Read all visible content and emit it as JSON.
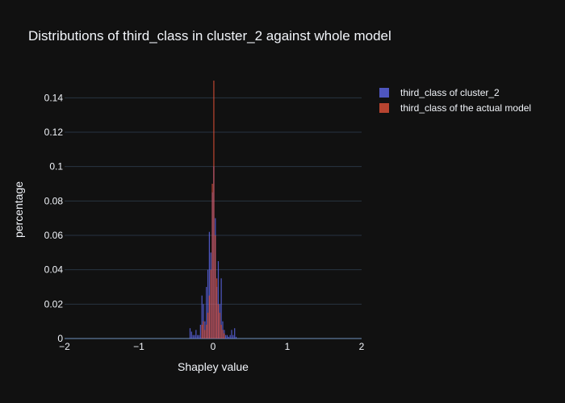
{
  "chart_data": {
    "type": "bar",
    "barmode": "overlay",
    "title": "Distributions of third_class in cluster_2 against whole model",
    "xlabel": "Shapley value",
    "ylabel": "percentage",
    "xlim": [
      -2,
      2
    ],
    "ylim": [
      0,
      0.15
    ],
    "x_ticks": [
      -2,
      -1,
      0,
      1,
      2
    ],
    "x_tick_labels": [
      "−2",
      "−1",
      "0",
      "1",
      "2"
    ],
    "y_ticks": [
      0,
      0.02,
      0.04,
      0.06,
      0.08,
      0.1,
      0.12,
      0.14
    ],
    "y_tick_labels": [
      "0",
      "0.02",
      "0.04",
      "0.06",
      "0.08",
      "0.1",
      "0.12",
      "0.14"
    ],
    "grid": true,
    "legend_position": "top-right",
    "bin_width": 0.02,
    "series": [
      {
        "name": "third_class of cluster_2",
        "color": "#636efa",
        "x": [
          -0.31,
          -0.29,
          -0.27,
          -0.25,
          -0.23,
          -0.21,
          -0.19,
          -0.17,
          -0.15,
          -0.13,
          -0.11,
          -0.09,
          -0.07,
          -0.05,
          -0.03,
          -0.01,
          0.01,
          0.03,
          0.05,
          0.07,
          0.09,
          0.11,
          0.13,
          0.15,
          0.17,
          0.19,
          0.21,
          0.23,
          0.25,
          0.27,
          0.29,
          0.31
        ],
        "values": [
          0.006,
          0.004,
          0.002,
          0.002,
          0.005,
          0.002,
          0.002,
          0.008,
          0.025,
          0.02,
          0.01,
          0.03,
          0.04,
          0.062,
          0.05,
          0.085,
          0.1,
          0.07,
          0.03,
          0.045,
          0.02,
          0.035,
          0.01,
          0.005,
          0.002,
          0.002,
          0.001,
          0.002,
          0.005,
          0.002,
          0.006,
          0.001
        ]
      },
      {
        "name": "third_class of the actual model",
        "color": "#ef553b",
        "x": [
          -0.15,
          -0.13,
          -0.11,
          -0.09,
          -0.07,
          -0.05,
          -0.03,
          -0.01,
          0.01,
          0.03,
          0.05,
          0.07,
          0.09,
          0.11,
          0.13,
          0.15
        ],
        "values": [
          0.008,
          0.01,
          0.005,
          0.008,
          0.015,
          0.025,
          0.04,
          0.09,
          0.15,
          0.06,
          0.035,
          0.02,
          0.015,
          0.008,
          0.005,
          0.003
        ]
      }
    ]
  }
}
